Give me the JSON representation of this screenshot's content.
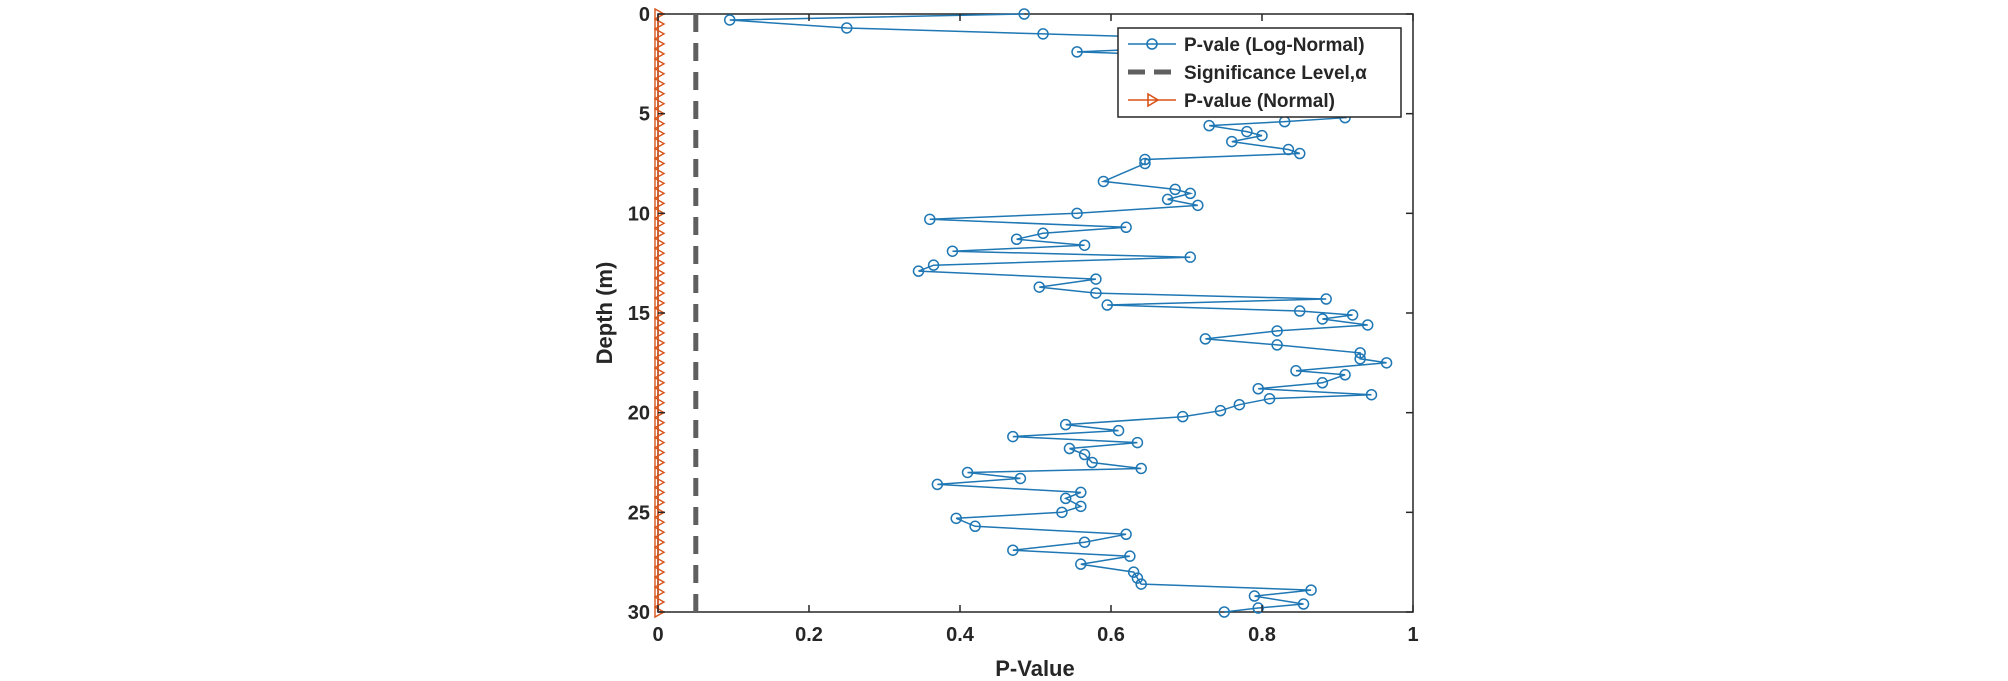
{
  "chart_data": {
    "type": "line",
    "xlabel": "P-Value",
    "ylabel": "Depth (m)",
    "xlim": [
      0,
      1
    ],
    "ylim": [
      0,
      30
    ],
    "y_reversed": true,
    "x_ticks": [
      "0",
      "0.2",
      "0.4",
      "0.6",
      "0.8",
      "1"
    ],
    "y_ticks": [
      "0",
      "5",
      "10",
      "15",
      "20",
      "25",
      "30"
    ],
    "grid": false,
    "legend_position": "top-right",
    "series": [
      {
        "name": "P-vale (Log-Normal)",
        "style": "line-circle",
        "color": "#1f77b4",
        "x": [
          0.485,
          0.095,
          0.25,
          0.51,
          0.87,
          0.555,
          0.87,
          0.875,
          0.9,
          0.905,
          0.79,
          0.88,
          0.91,
          0.83,
          0.73,
          0.78,
          0.8,
          0.76,
          0.835,
          0.85,
          0.645,
          0.645,
          0.59,
          0.685,
          0.705,
          0.675,
          0.715,
          0.555,
          0.36,
          0.62,
          0.51,
          0.475,
          0.565,
          0.39,
          0.705,
          0.365,
          0.345,
          0.58,
          0.505,
          0.58,
          0.885,
          0.595,
          0.85,
          0.92,
          0.88,
          0.94,
          0.82,
          0.725,
          0.82,
          0.93,
          0.93,
          0.965,
          0.845,
          0.91,
          0.88,
          0.795,
          0.945,
          0.81,
          0.77,
          0.745,
          0.695,
          0.54,
          0.61,
          0.47,
          0.635,
          0.545,
          0.565,
          0.575,
          0.64,
          0.41,
          0.48,
          0.37,
          0.56,
          0.54,
          0.56,
          0.535,
          0.395,
          0.42,
          0.62,
          0.565,
          0.47,
          0.625,
          0.56,
          0.63,
          0.635,
          0.64,
          0.865,
          0.79,
          0.855,
          0.795,
          0.75
        ],
        "depth": [
          0,
          0.3,
          0.7,
          1.0,
          1.4,
          1.9,
          2.3,
          2.9,
          3.2,
          3.5,
          3.9,
          4.4,
          5.2,
          5.4,
          5.6,
          5.9,
          6.1,
          6.4,
          6.8,
          7.0,
          7.3,
          7.5,
          8.4,
          8.8,
          9.0,
          9.3,
          9.6,
          10.0,
          10.3,
          10.7,
          11.0,
          11.3,
          11.6,
          11.9,
          12.2,
          12.6,
          12.9,
          13.3,
          13.7,
          14.0,
          14.3,
          14.6,
          14.9,
          15.1,
          15.3,
          15.6,
          15.9,
          16.3,
          16.6,
          17.0,
          17.3,
          17.5,
          17.9,
          18.1,
          18.5,
          18.8,
          19.1,
          19.3,
          19.6,
          19.9,
          20.2,
          20.6,
          20.9,
          21.2,
          21.5,
          21.8,
          22.1,
          22.5,
          22.8,
          23.0,
          23.3,
          23.6,
          24.0,
          24.3,
          24.7,
          25.0,
          25.3,
          25.7,
          26.1,
          26.5,
          26.9,
          27.2,
          27.6,
          28.0,
          28.3,
          28.6,
          28.9,
          29.2,
          29.6,
          29.8,
          30.0
        ]
      },
      {
        "name": "Significance Level,α",
        "style": "dashed",
        "color": "#5f5f5f",
        "x": [
          0.05,
          0.05
        ],
        "depth": [
          0,
          30
        ]
      },
      {
        "name": "P-value (Normal)",
        "style": "line-triangle",
        "color": "#d95319",
        "x": [
          0,
          0,
          0,
          0,
          0,
          0,
          0,
          0,
          0,
          0,
          0,
          0,
          0,
          0,
          0,
          0,
          0,
          0,
          0,
          0,
          0,
          0,
          0,
          0,
          0,
          0,
          0,
          0,
          0,
          0,
          0,
          0,
          0,
          0,
          0,
          0,
          0,
          0,
          0,
          0,
          0,
          0,
          0,
          0,
          0,
          0,
          0,
          0,
          0,
          0,
          0,
          0,
          0,
          0,
          0,
          0,
          0,
          0,
          0,
          0,
          0
        ],
        "depth": [
          0,
          0.5,
          1.0,
          1.5,
          2.0,
          2.5,
          3.0,
          3.5,
          4.0,
          4.5,
          5.0,
          5.5,
          6.0,
          6.5,
          7.0,
          7.5,
          8.0,
          8.5,
          9.0,
          9.5,
          10.0,
          10.5,
          11.0,
          11.5,
          12.0,
          12.5,
          13.0,
          13.5,
          14.0,
          14.5,
          15.0,
          15.5,
          16.0,
          16.5,
          17.0,
          17.5,
          18.0,
          18.5,
          19.0,
          19.5,
          20.0,
          20.5,
          21.0,
          21.5,
          22.0,
          22.5,
          23.0,
          23.5,
          24.0,
          24.5,
          25.0,
          25.5,
          26.0,
          26.5,
          27.0,
          27.5,
          28.0,
          28.5,
          29.0,
          29.5,
          30.0
        ]
      }
    ]
  }
}
